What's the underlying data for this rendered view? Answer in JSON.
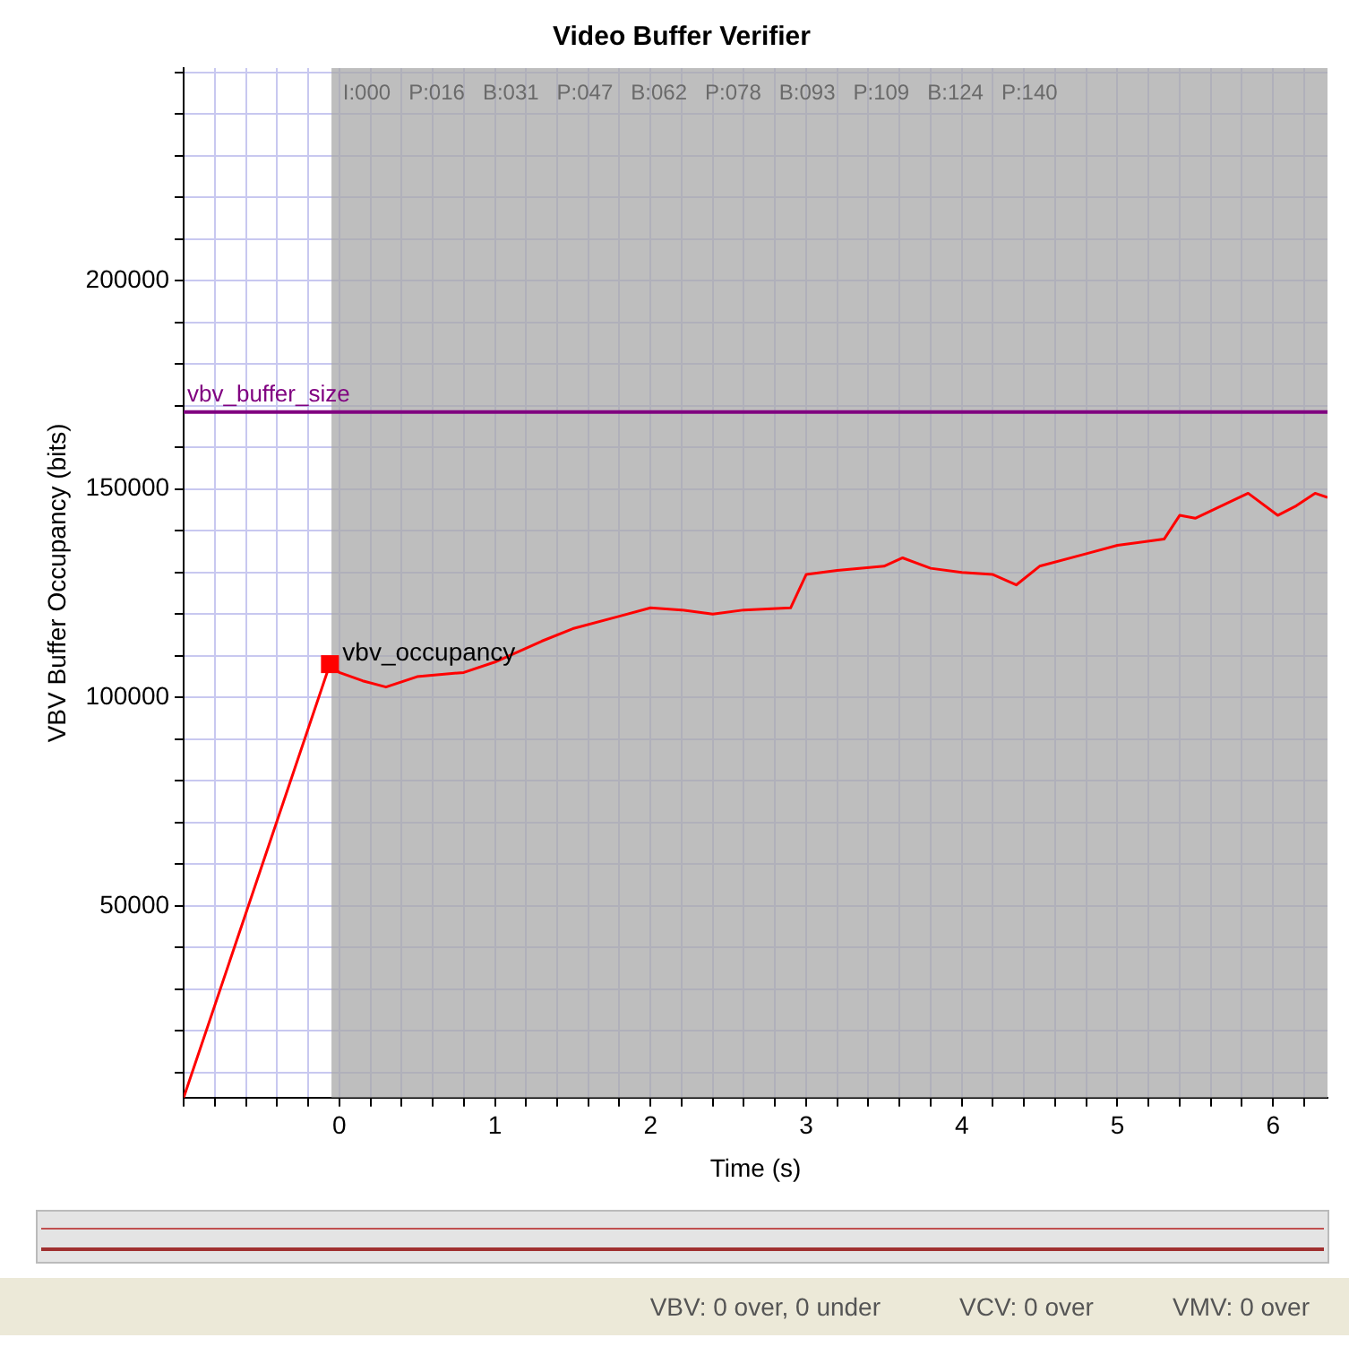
{
  "chart_data": {
    "type": "line",
    "title": "Video Buffer Verifier",
    "xlabel": "Time (s)",
    "ylabel": "VBV Buffer Occupancy (bits)",
    "x": [
      -1,
      -0.06,
      0,
      0.15,
      0.3,
      0.5,
      0.8,
      1.0,
      1.3,
      1.5,
      1.8,
      2.0,
      2.2,
      2.4,
      2.6,
      2.9,
      3.0,
      3.2,
      3.5,
      3.62,
      3.8,
      4.0,
      4.2,
      4.35,
      4.5,
      4.8,
      5.0,
      5.3,
      5.4,
      5.5,
      5.84,
      6.03,
      6.15,
      6.27,
      6.35
    ],
    "series": [
      {
        "name": "vbv_occupancy",
        "color": "#ff0000",
        "values": [
          4000,
          108000,
          106000,
          104000,
          102500,
          105000,
          106000,
          108500,
          113500,
          116500,
          119500,
          121500,
          121000,
          120000,
          121000,
          121500,
          129500,
          130500,
          131500,
          133500,
          131000,
          130000,
          129500,
          127000,
          131500,
          134500,
          136500,
          138000,
          143700,
          143000,
          149000,
          143700,
          146000,
          149000,
          148000
        ]
      }
    ],
    "xlim": [
      -1,
      6.35
    ],
    "ylim": [
      4000,
      251000
    ],
    "xticks": [
      {
        "value": -1,
        "label": null
      },
      {
        "value": -0.8,
        "label": null
      },
      {
        "value": -0.6,
        "label": null
      },
      {
        "value": -0.4,
        "label": null
      },
      {
        "value": -0.2,
        "label": null
      },
      0,
      {
        "value": 0.2,
        "label": null
      },
      {
        "value": 0.4,
        "label": null
      },
      {
        "value": 0.6,
        "label": null
      },
      {
        "value": 0.8,
        "label": null
      },
      1,
      {
        "value": 1.2,
        "label": null
      },
      {
        "value": 1.4,
        "label": null
      },
      {
        "value": 1.6,
        "label": null
      },
      {
        "value": 1.8,
        "label": null
      },
      2,
      {
        "value": 2.2,
        "label": null
      },
      {
        "value": 2.4,
        "label": null
      },
      {
        "value": 2.6,
        "label": null
      },
      {
        "value": 2.8,
        "label": null
      },
      3,
      {
        "value": 3.2,
        "label": null
      },
      {
        "value": 3.4,
        "label": null
      },
      {
        "value": 3.6,
        "label": null
      },
      {
        "value": 3.8,
        "label": null
      },
      4,
      {
        "value": 4.2,
        "label": null
      },
      {
        "value": 4.4,
        "label": null
      },
      {
        "value": 4.6,
        "label": null
      },
      {
        "value": 4.8,
        "label": null
      },
      5,
      {
        "value": 5.2,
        "label": null
      },
      {
        "value": 5.4,
        "label": null
      },
      {
        "value": 5.6,
        "label": null
      },
      {
        "value": 5.8,
        "label": null
      },
      6,
      {
        "value": 6.2,
        "label": null
      }
    ],
    "yticks": [
      {
        "value": 10000,
        "label": null
      },
      {
        "value": 20000,
        "label": null
      },
      {
        "value": 30000,
        "label": null
      },
      {
        "value": 40000,
        "label": null
      },
      50000,
      {
        "value": 60000,
        "label": null
      },
      {
        "value": 70000,
        "label": null
      },
      {
        "value": 80000,
        "label": null
      },
      {
        "value": 90000,
        "label": null
      },
      100000,
      {
        "value": 110000,
        "label": null
      },
      {
        "value": 120000,
        "label": null
      },
      {
        "value": 130000,
        "label": null
      },
      {
        "value": 140000,
        "label": null
      },
      150000,
      {
        "value": 160000,
        "label": null
      },
      {
        "value": 170000,
        "label": null
      },
      {
        "value": 180000,
        "label": null
      },
      {
        "value": 190000,
        "label": null
      },
      200000,
      {
        "value": 210000,
        "label": null
      },
      {
        "value": 220000,
        "label": null
      },
      {
        "value": 230000,
        "label": null
      },
      {
        "value": 240000,
        "label": null
      },
      {
        "value": 250000,
        "label": null
      }
    ],
    "grid": true,
    "legend": false,
    "marker": "none",
    "line_style": "solid",
    "ref_lines": [
      {
        "axis": "y",
        "value": 168500,
        "label": "vbv_buffer_size",
        "color": "#800080"
      }
    ],
    "bands": [
      {
        "axis": "x",
        "from": -0.05,
        "to": 6.35,
        "color": "#a8a8a8"
      }
    ],
    "annotations": [
      "I:000   P:016   B:031   P:047   B:062   P:078   B:093   P:109   B:124   P:140",
      "VBV: 0 over, 0 under",
      "VCV: 0 over",
      "VMV: 0 over"
    ]
  }
}
